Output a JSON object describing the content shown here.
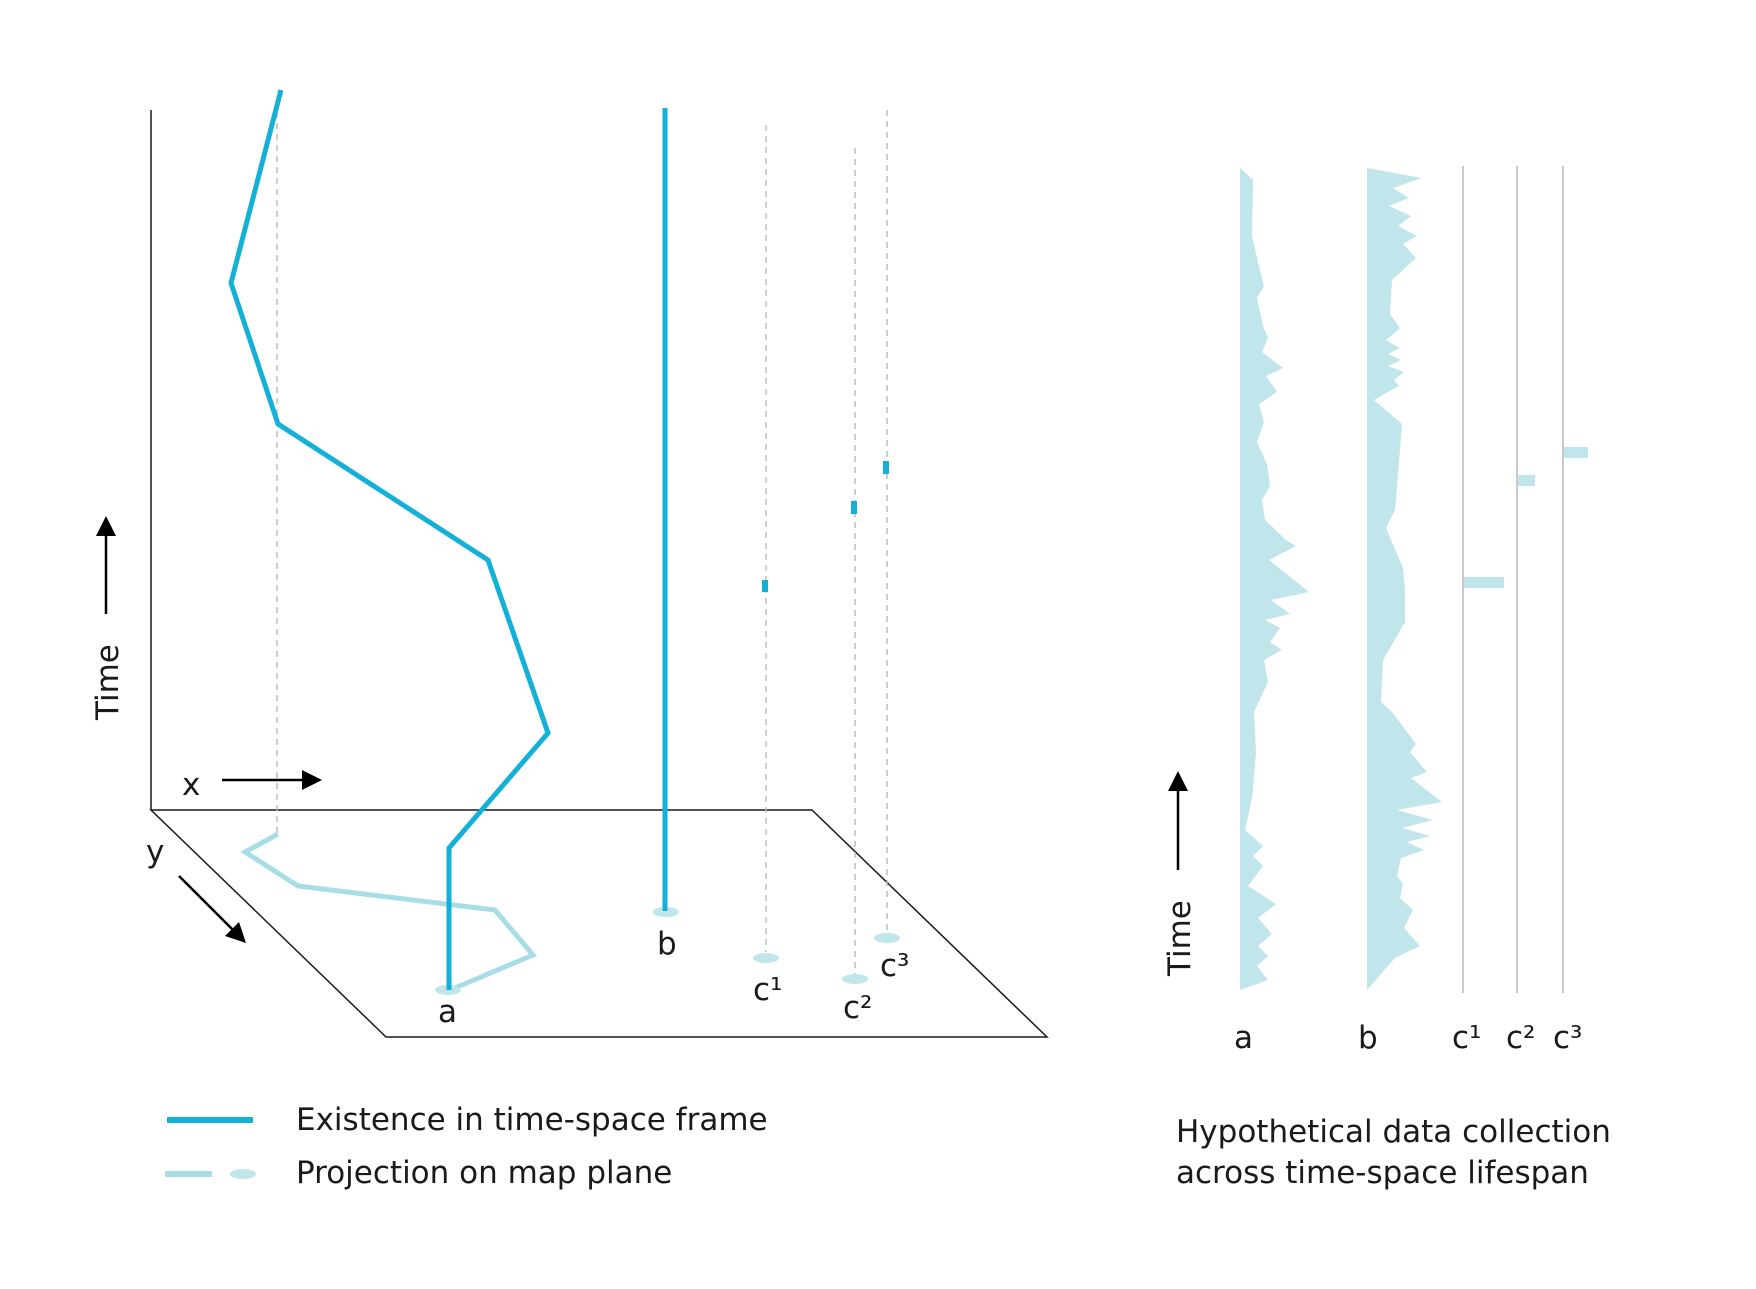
{
  "colors": {
    "existence": "#13b0d8",
    "projection": "#a9dde6",
    "data_fill": "#c0e5eb",
    "axis": "#1a1a1a",
    "dashed": "#b8b8b8"
  },
  "left_diagram": {
    "time_label": "Time",
    "x_label": "x",
    "y_label": "y",
    "entities": [
      {
        "id": "a",
        "label": "a"
      },
      {
        "id": "b",
        "label": "b"
      },
      {
        "id": "c1",
        "label": "c¹"
      },
      {
        "id": "c2",
        "label": "c²"
      },
      {
        "id": "c3",
        "label": "c³"
      }
    ]
  },
  "legend": {
    "existence": "Existence in time-space frame",
    "projection": "Projection on map plane"
  },
  "right_diagram": {
    "time_label": "Time",
    "columns": [
      {
        "id": "a",
        "label": "a"
      },
      {
        "id": "b",
        "label": "b"
      },
      {
        "id": "c1",
        "label": "c¹"
      },
      {
        "id": "c2",
        "label": "c²"
      },
      {
        "id": "c3",
        "label": "c³"
      }
    ],
    "caption_line1": "Hypothetical data collection",
    "caption_line2": "across time-space lifespan"
  }
}
